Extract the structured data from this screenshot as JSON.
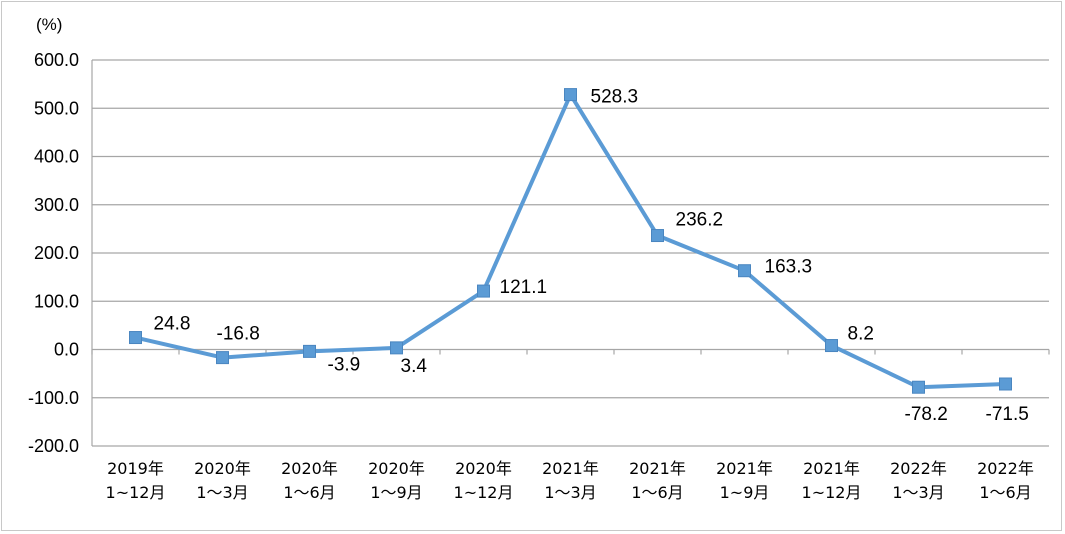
{
  "chart_data": {
    "type": "line",
    "title": "",
    "xlabel": "",
    "ylabel": "(%)",
    "ylim": [
      -200,
      600
    ],
    "yticks": [
      600,
      500,
      400,
      300,
      200,
      100,
      0,
      -100,
      -200
    ],
    "ytick_labels": [
      "600.0",
      "500.0",
      "400.0",
      "300.0",
      "200.0",
      "100.0",
      "0.0",
      "-100.0",
      "-200.0"
    ],
    "grid": true,
    "legend": "none",
    "categories": [
      [
        "2019年",
        "1~12月"
      ],
      [
        "2020年",
        "1～3月"
      ],
      [
        "2020年",
        "1～6月"
      ],
      [
        "2020年",
        "1～9月"
      ],
      [
        "2020年",
        "1~12月"
      ],
      [
        "2021年",
        "1～3月"
      ],
      [
        "2021年",
        "1～6月"
      ],
      [
        "2021年",
        "1~9月"
      ],
      [
        "2021年",
        "1~12月"
      ],
      [
        "2022年",
        "1～3月"
      ],
      [
        "2022年",
        "1～6月"
      ]
    ],
    "series": [
      {
        "values": [
          24.8,
          -16.8,
          -3.9,
          3.4,
          121.1,
          528.3,
          236.2,
          163.3,
          8.2,
          -78.2,
          -71.5
        ],
        "data_labels": [
          "24.8",
          "-16.8",
          "-3.9",
          "3.4",
          "121.1",
          "528.3",
          "236.2",
          "163.3",
          "8.2",
          "-78.2",
          "-71.5"
        ],
        "color": "#5b9bd5",
        "marker": "square"
      }
    ]
  }
}
